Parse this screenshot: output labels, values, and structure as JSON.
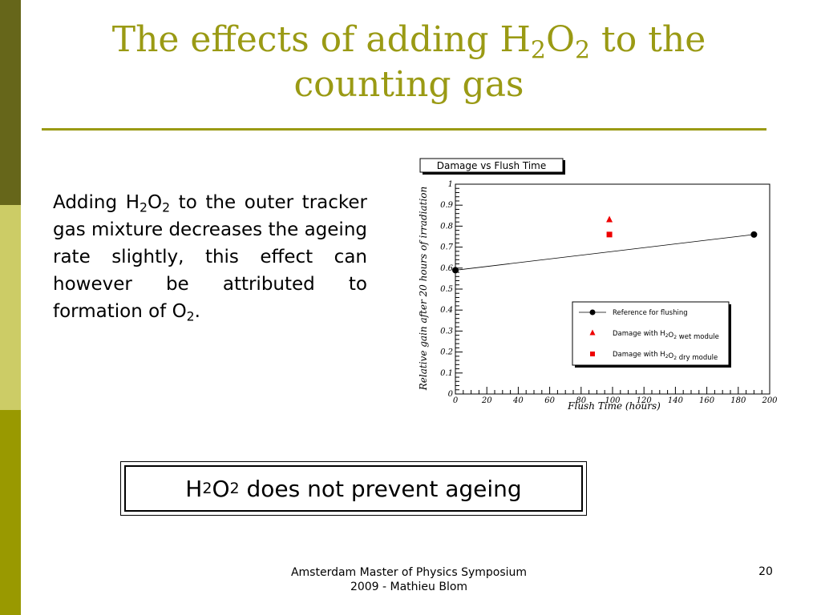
{
  "colors": {
    "accent": "#9a9a14",
    "sidebar_dark": "#66661a",
    "sidebar_light": "#cccc66",
    "sidebar_mid": "#999900",
    "marker_red": "#ee0000"
  },
  "slide": {
    "title_prefix": "The effects of adding H",
    "title_sub1": "2",
    "title_mid": "O",
    "title_sub2": "2",
    "title_suffix": " to the counting gas",
    "body_part1": "Adding H",
    "body_sub1": "2",
    "body_part2": "O",
    "body_sub2": "2",
    "body_part3": " to the outer tracker gas mixture decreases the ageing rate slightly, this effect can however be attributed to formation of O",
    "body_sub3": "2",
    "body_part4": ".",
    "callout_h": "H",
    "callout_sub1": "2",
    "callout_o": "O",
    "callout_sub2": "2",
    "callout_rest": " does not prevent ageing",
    "footer_line1": "Amsterdam Master of Physics Symposium",
    "footer_line2": "2009 - Mathieu Blom",
    "page_number": "20"
  },
  "chart_data": {
    "type": "scatter",
    "title": "Damage vs Flush Time",
    "xlabel": "Flush Time (hours)",
    "ylabel": "Relative gain after 20 hours of irradiation",
    "xlim": [
      0,
      200
    ],
    "ylim": [
      0,
      1
    ],
    "x_ticks": [
      "0",
      "20",
      "40",
      "60",
      "80",
      "100",
      "120",
      "140",
      "160",
      "180",
      "200"
    ],
    "y_ticks": [
      "0",
      "0.1",
      "0.2",
      "0.3",
      "0.4",
      "0.5",
      "0.6",
      "0.7",
      "0.8",
      "0.9",
      "1"
    ],
    "grid": false,
    "legend_position": "lower-right",
    "series": [
      {
        "name": "Reference for flushing",
        "marker": "circle",
        "color": "#000000",
        "line": true,
        "points": [
          [
            0,
            0.59
          ],
          [
            190,
            0.76
          ]
        ]
      },
      {
        "name": "Damage with H2O2 wet module",
        "marker": "triangle",
        "color": "#ee0000",
        "line": false,
        "points": [
          [
            98,
            0.83
          ]
        ]
      },
      {
        "name": "Damage with H2O2 dry module",
        "marker": "square",
        "color": "#ee0000",
        "line": false,
        "points": [
          [
            98,
            0.76
          ]
        ]
      }
    ],
    "legend_labels": [
      {
        "pre": "Reference for flushing",
        "sub1": "",
        "mid": "",
        "sub2": "",
        "post": ""
      },
      {
        "pre": "Damage with H",
        "sub1": "2",
        "mid": "O",
        "sub2": "2",
        "post": " wet module"
      },
      {
        "pre": "Damage with H",
        "sub1": "2",
        "mid": "O",
        "sub2": "2",
        "post": " dry module"
      }
    ]
  }
}
